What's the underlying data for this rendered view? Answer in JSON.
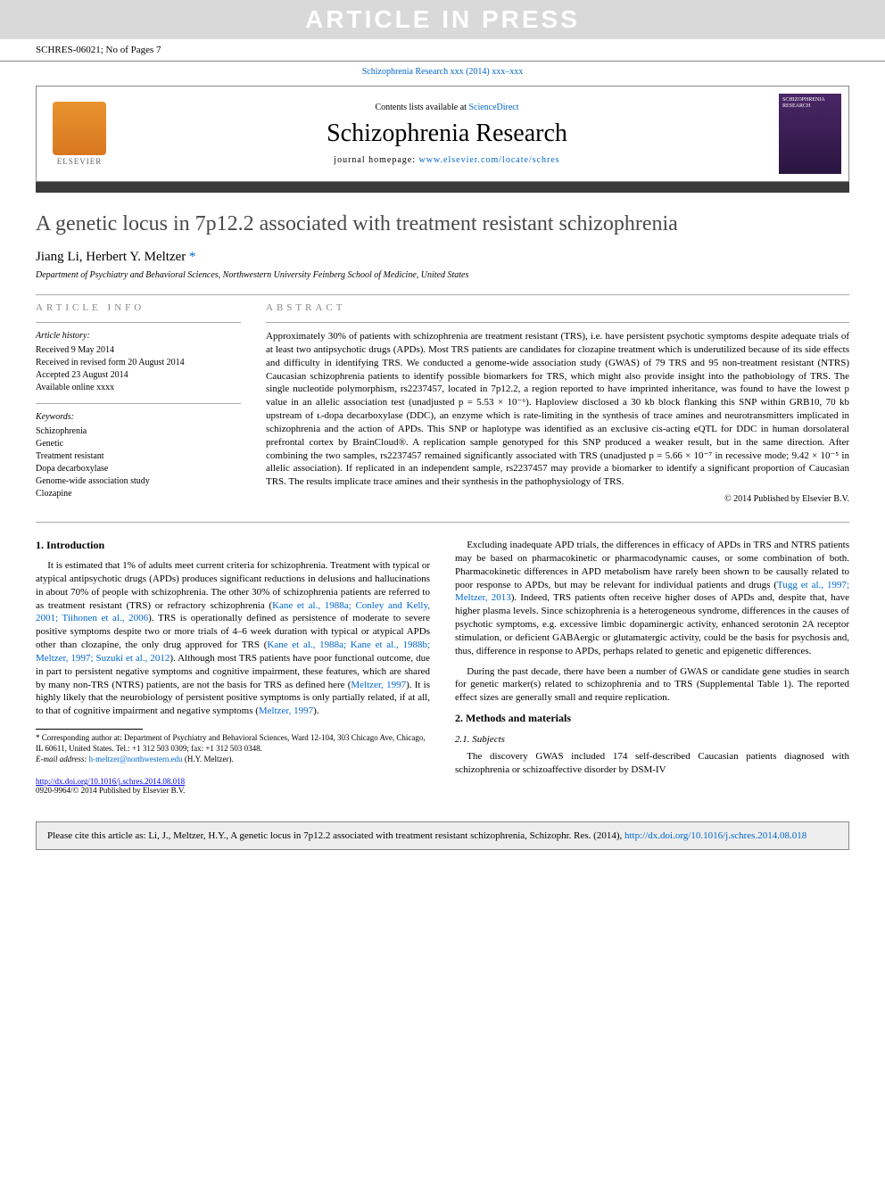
{
  "banner": "ARTICLE IN PRESS",
  "article_id": "SCHRES-06021; No of Pages 7",
  "journal_link_top": "Schizophrenia Research xxx (2014) xxx–xxx",
  "header": {
    "contents_prefix": "Contents lists available at ",
    "contents_link": "ScienceDirect",
    "journal_name": "Schizophrenia Research",
    "homepage_prefix": "journal homepage: ",
    "homepage_url": "www.elsevier.com/locate/schres",
    "elsevier": "ELSEVIER",
    "cover_text": "SCHIZOPHRENIA RESEARCH"
  },
  "title": "A genetic locus in 7p12.2 associated with treatment resistant schizophrenia",
  "authors": "Jiang Li, Herbert Y. Meltzer",
  "corr_mark": "*",
  "affiliation": "Department of Psychiatry and Behavioral Sciences, Northwestern University Feinberg School of Medicine, United States",
  "info": {
    "label": "article info",
    "history_head": "Article history:",
    "history": [
      "Received 9 May 2014",
      "Received in revised form 20 August 2014",
      "Accepted 23 August 2014",
      "Available online xxxx"
    ],
    "keywords_head": "Keywords:",
    "keywords": [
      "Schizophrenia",
      "Genetic",
      "Treatment resistant",
      "Dopa decarboxylase",
      "Genome-wide association study",
      "Clozapine"
    ]
  },
  "abstract": {
    "label": "abstract",
    "text": "Approximately 30% of patients with schizophrenia are treatment resistant (TRS), i.e. have persistent psychotic symptoms despite adequate trials of at least two antipsychotic drugs (APDs). Most TRS patients are candidates for clozapine treatment which is underutilized because of its side effects and difficulty in identifying TRS. We conducted a genome-wide association study (GWAS) of 79 TRS and 95 non-treatment resistant (NTRS) Caucasian schizophrenia patients to identify possible biomarkers for TRS, which might also provide insight into the pathobiology of TRS. The single nucleotide polymorphism, rs2237457, located in 7p12.2, a region reported to have imprinted inheritance, was found to have the lowest p value in an allelic association test (unadjusted p = 5.53 × 10⁻⁶). Haploview disclosed a 30 kb block flanking this SNP within GRB10, 70 kb upstream of ʟ-dopa decarboxylase (DDC), an enzyme which is rate-limiting in the synthesis of trace amines and neurotransmitters implicated in schizophrenia and the action of APDs. This SNP or haplotype was identified as an exclusive cis-acting eQTL for DDC in human dorsolateral prefrontal cortex by BrainCloud®. A replication sample genotyped for this SNP produced a weaker result, but in the same direction. After combining the two samples, rs2237457 remained significantly associated with TRS (unadjusted p = 5.66 × 10⁻⁷ in recessive mode; 9.42 × 10⁻⁵ in allelic association). If replicated in an independent sample, rs2237457 may provide a biomarker to identify a significant proportion of Caucasian TRS. The results implicate trace amines and their synthesis in the pathophysiology of TRS.",
    "copyright": "© 2014 Published by Elsevier B.V."
  },
  "body": {
    "intro_head": "1. Introduction",
    "intro_p1a": "It is estimated that 1% of adults meet current criteria for schizophrenia. Treatment with typical or atypical antipsychotic drugs (APDs) produces significant reductions in delusions and hallucinations in about 70% of people with schizophrenia. The other 30% of schizophrenia patients are referred to as treatment resistant (TRS) or refractory schizophrenia (",
    "intro_p1_ref1": "Kane et al., 1988a; Conley and Kelly, 2001; Tiihonen et al., 2006",
    "intro_p1b": "). TRS is operationally defined as persistence of moderate to severe positive symptoms despite two or more trials of 4–6 week duration with typical or atypical APDs other than clozapine, the only drug approved for TRS (",
    "intro_p1_ref2": "Kane et al., 1988a; Kane et al., 1988b; Meltzer, 1997; Suzuki et al., 2012",
    "intro_p1c": "). Although most TRS patients have poor functional outcome, due in part to persistent negative symptoms and cognitive impairment, these features, which are shared by many non-TRS (NTRS) patients, are not the basis for TRS as defined here (",
    "intro_p1_ref3": "Meltzer, 1997",
    "intro_p1d": "). It is highly likely that the neurobiology of persistent positive symptoms is only partially related, if at all, to that of cognitive impairment and negative symptoms (",
    "intro_p1_ref4": "Meltzer, 1997",
    "intro_p1e": ").",
    "intro_p2a": "Excluding inadequate APD trials, the differences in efficacy of APDs in TRS and NTRS patients may be based on pharmacokinetic or pharmacodynamic causes, or some combination of both. Pharmacokinetic differences in APD metabolism have rarely been shown to be causally related to poor response to APDs, but may be relevant for individual patients and drugs (",
    "intro_p2_ref1": "Tugg et al., 1997; Meltzer, 2013",
    "intro_p2b": "). Indeed, TRS patients often receive higher doses of APDs and, despite that, have higher plasma levels. Since schizophrenia is a heterogeneous syndrome, differences in the causes of psychotic symptoms, e.g. excessive limbic dopaminergic activity, enhanced serotonin 2A receptor stimulation, or deficient GABAergic or glutamatergic activity, could be the basis for psychosis and, thus, difference in response to APDs, perhaps related to genetic and epigenetic differences.",
    "intro_p3": "During the past decade, there have been a number of GWAS or candidate gene studies in search for genetic marker(s) related to schizophrenia and to TRS (Supplemental Table 1). The reported effect sizes are generally small and require replication.",
    "methods_head": "2. Methods and materials",
    "subjects_head": "2.1. Subjects",
    "subjects_p1": "The discovery GWAS included 174 self-described Caucasian patients diagnosed with schizophrenia or schizoaffective disorder by DSM-IV"
  },
  "footnote": {
    "corr": "* Corresponding author at: Department of Psychiatry and Behavioral Sciences, Ward 12-104, 303 Chicago Ave, Chicago, IL 60611, United States. Tel.: +1 312 503 0309; fax: +1 312 503 0348.",
    "email_label": "E-mail address: ",
    "email": "h-meltzer@northwestern.edu",
    "email_suffix": " (H.Y. Meltzer)."
  },
  "doi": {
    "url": "http://dx.doi.org/10.1016/j.schres.2014.08.018",
    "issn": "0920-9964/© 2014 Published by Elsevier B.V."
  },
  "citebox": {
    "text": "Please cite this article as: Li, J., Meltzer, H.Y., A genetic locus in 7p12.2 associated with treatment resistant schizophrenia, Schizophr. Res. (2014), ",
    "url": "http://dx.doi.org/10.1016/j.schres.2014.08.018"
  },
  "colors": {
    "banner_bg": "#d9d9d9",
    "banner_fg": "#ffffff",
    "link": "#0066cc",
    "rule": "#aaaaaa",
    "dark_rule": "#3a3a3a",
    "elsevier_orange": "#e8932f",
    "cover_purple": "#4a2766",
    "citebox_bg": "#eeeeee"
  }
}
